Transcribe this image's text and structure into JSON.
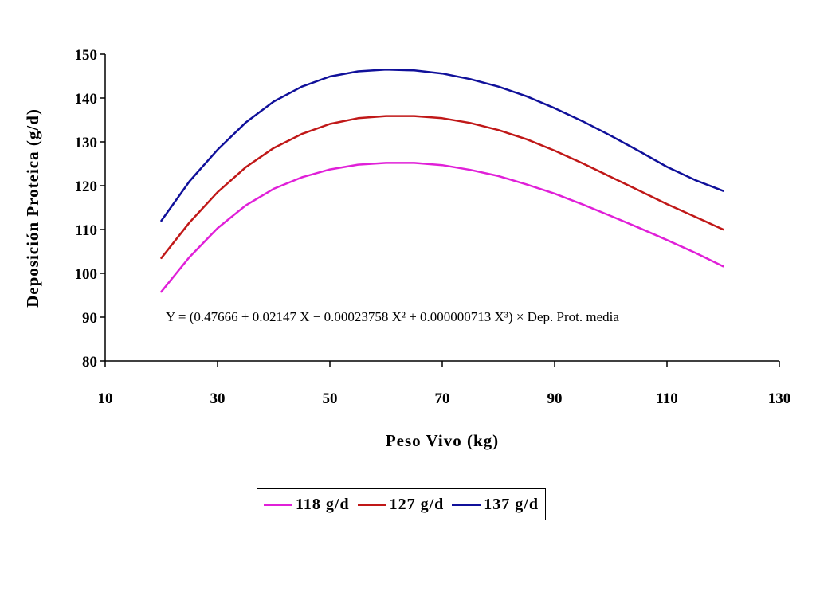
{
  "chart_data": {
    "type": "line",
    "title": "",
    "xlabel": "Peso Vivo (kg)",
    "ylabel": "Deposición Proteica (g/d)",
    "xlim": [
      10,
      130
    ],
    "ylim": [
      80,
      150
    ],
    "xticks": [
      10,
      30,
      50,
      70,
      90,
      110,
      130
    ],
    "yticks": [
      80,
      90,
      100,
      110,
      120,
      130,
      140,
      150
    ],
    "grid": false,
    "legend_position": "bottom",
    "annotation": "Y = (0.47666 + 0.02147 X − 0.00023758 X² + 0.000000713 X³) × Dep. Prot. media",
    "x": [
      20,
      25,
      30,
      35,
      40,
      45,
      50,
      55,
      60,
      65,
      70,
      75,
      80,
      85,
      90,
      95,
      100,
      105,
      110,
      115,
      120
    ],
    "series": [
      {
        "name": "118 g/d",
        "color": "#e020d8",
        "values": [
          95.8,
          103.7,
          110.3,
          115.5,
          119.3,
          121.9,
          123.7,
          124.8,
          125.2,
          125.2,
          124.7,
          123.6,
          122.2,
          120.3,
          118.2,
          115.7,
          113.1,
          110.4,
          107.6,
          104.7,
          101.6
        ]
      },
      {
        "name": "127 g/d",
        "color": "#c01818",
        "values": [
          103.5,
          111.6,
          118.5,
          124.2,
          128.6,
          131.8,
          134.1,
          135.4,
          135.9,
          135.9,
          135.4,
          134.3,
          132.7,
          130.6,
          128.0,
          125.1,
          122.0,
          118.9,
          115.8,
          112.9,
          110.0
        ]
      },
      {
        "name": "137 g/d",
        "color": "#10109a",
        "values": [
          112.0,
          121.0,
          128.2,
          134.4,
          139.2,
          142.6,
          144.9,
          146.1,
          146.5,
          146.3,
          145.6,
          144.3,
          142.6,
          140.4,
          137.7,
          134.7,
          131.4,
          127.9,
          124.3,
          121.3,
          118.8
        ]
      }
    ]
  }
}
